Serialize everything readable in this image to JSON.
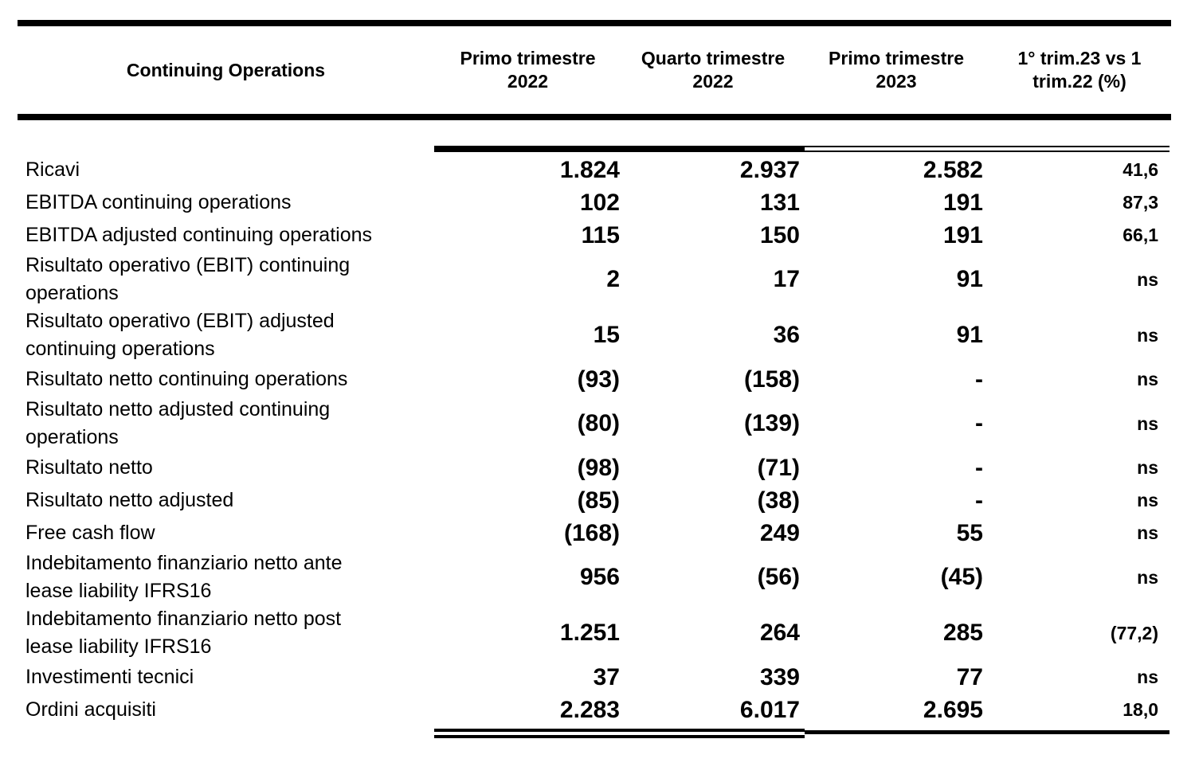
{
  "table": {
    "title": "Continuing Operations",
    "columns": [
      "Primo trimestre\n2022",
      "Quarto trimestre\n2022",
      "Primo trimestre\n2023",
      "1° trim.23 vs 1\ntrim.22 (%)"
    ],
    "rows": [
      {
        "label": "Ricavi",
        "q1_2022": "1.824",
        "q4_2022": "2.937",
        "q1_2023": "2.582",
        "pct": "41,6"
      },
      {
        "label": "EBITDA continuing operations",
        "q1_2022": "102",
        "q4_2022": "131",
        "q1_2023": "191",
        "pct": "87,3"
      },
      {
        "label": "EBITDA adjusted continuing operations",
        "q1_2022": "115",
        "q4_2022": "150",
        "q1_2023": "191",
        "pct": "66,1"
      },
      {
        "label": "Risultato operativo (EBIT) continuing\noperations",
        "q1_2022": "2",
        "q4_2022": "17",
        "q1_2023": "91",
        "pct": "ns"
      },
      {
        "label": "Risultato operativo (EBIT) adjusted\ncontinuing operations",
        "q1_2022": "15",
        "q4_2022": "36",
        "q1_2023": "91",
        "pct": "ns"
      },
      {
        "label": "Risultato netto continuing operations",
        "q1_2022": "(93)",
        "q4_2022": "(158)",
        "q1_2023": "-",
        "pct": "ns"
      },
      {
        "label": "Risultato netto adjusted continuing\noperations",
        "q1_2022": "(80)",
        "q4_2022": "(139)",
        "q1_2023": "-",
        "pct": "ns"
      },
      {
        "label": "Risultato netto",
        "q1_2022": "(98)",
        "q4_2022": "(71)",
        "q1_2023": "-",
        "pct": "ns"
      },
      {
        "label": "Risultato netto adjusted",
        "q1_2022": "(85)",
        "q4_2022": "(38)",
        "q1_2023": "-",
        "pct": "ns"
      },
      {
        "label": "Free cash flow",
        "q1_2022": "(168)",
        "q4_2022": "249",
        "q1_2023": "55",
        "pct": "ns"
      },
      {
        "label": "Indebitamento finanziario netto ante\nlease liability IFRS16",
        "q1_2022": "956",
        "q4_2022": "(56)",
        "q1_2023": "(45)",
        "pct": "ns"
      },
      {
        "label": "Indebitamento finanziario netto post\nlease liability IFRS16",
        "q1_2022": "1.251",
        "q4_2022": "264",
        "q1_2023": "285",
        "pct": "(77,2)"
      },
      {
        "label": "Investimenti tecnici",
        "q1_2022": "37",
        "q4_2022": "339",
        "q1_2023": "77",
        "pct": "ns"
      },
      {
        "label": "Ordini acquisiti",
        "q1_2022": "2.283",
        "q4_2022": "6.017",
        "q1_2023": "2.695",
        "pct": "18,0"
      }
    ]
  }
}
